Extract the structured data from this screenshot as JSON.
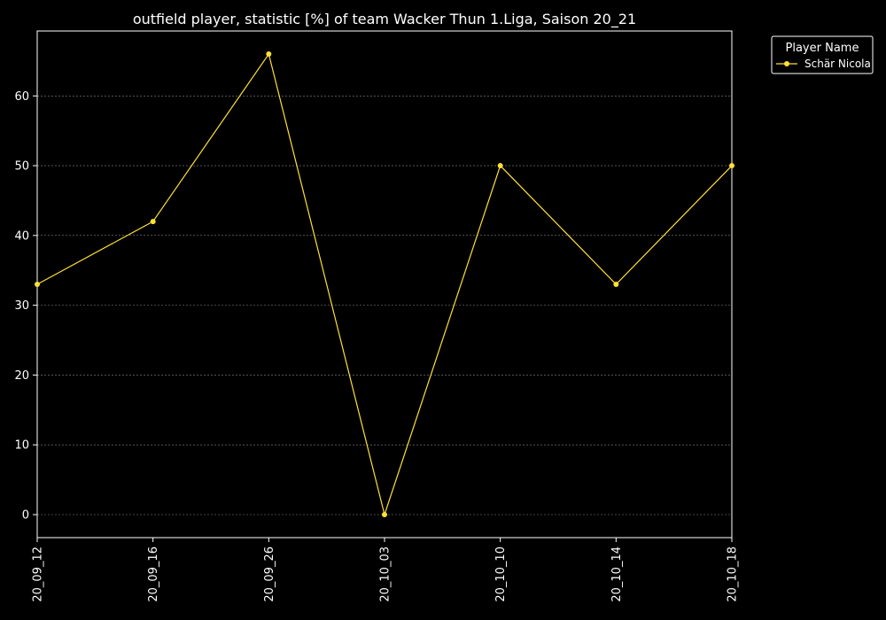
{
  "chart_data": {
    "type": "line",
    "title": "outfield player, statistic [%] of team Wacker Thun 1.Liga, Saison 20_21",
    "xlabel": "",
    "ylabel": "",
    "categories": [
      "20_09_12",
      "20_09_16",
      "20_09_26",
      "20_10_03",
      "20_10_10",
      "20_10_14",
      "20_10_18"
    ],
    "series": [
      {
        "name": "Schär Nicola",
        "values": [
          33,
          42,
          66,
          0,
          50,
          33,
          50
        ],
        "color": "#ffe135"
      }
    ],
    "ylim": [
      -3.3,
      69.3
    ],
    "yticks": [
      0,
      10,
      20,
      30,
      40,
      50,
      60
    ],
    "grid": true,
    "legend": {
      "title": "Player Name",
      "placement": "top-right, outside"
    },
    "colors": {
      "background": "#000000",
      "axis": "#ffffff",
      "grid": "#888888"
    }
  }
}
